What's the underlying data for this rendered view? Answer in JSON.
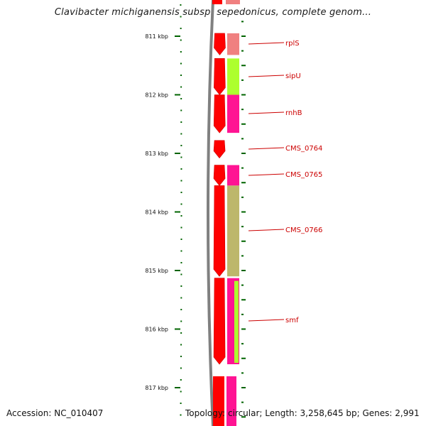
{
  "title": "Clavibacter michiganensis subsp. sepedonicus, complete genom...",
  "footer": {
    "accession": "Accession: NC_010407",
    "topology": "Topology: circular; Length: 3,258,645 bp; Genes: 2,991"
  },
  "scale": {
    "ticks": [
      "811 kbp",
      "812 kbp",
      "813 kbp",
      "814 kbp",
      "815 kbp",
      "816 kbp",
      "817 kbp"
    ]
  },
  "colors": {
    "cds_forward": "#ff0000",
    "backbone": "#808080",
    "tick": "#006400",
    "label": "#cc0000",
    "cog_pink": "#f08080",
    "cog_green": "#adff2f",
    "cog_magenta": "#ff1493",
    "cog_olive": "#bdb76b"
  },
  "genes": [
    {
      "name": "rplS",
      "start_kbp": 810.95,
      "end_kbp": 811.32,
      "cog_color": "#f08080"
    },
    {
      "name": "sipU",
      "start_kbp": 811.38,
      "end_kbp": 812.0,
      "cog_color": "#adff2f"
    },
    {
      "name": "rnhB",
      "start_kbp": 812.0,
      "end_kbp": 812.65,
      "cog_color": "#ff1493"
    },
    {
      "name": "CMS_0764",
      "start_kbp": 812.78,
      "end_kbp": 813.08,
      "cog_color": ""
    },
    {
      "name": "CMS_0765",
      "start_kbp": 813.2,
      "end_kbp": 813.55,
      "cog_color": "#ff1493"
    },
    {
      "name": "CMS_0766",
      "start_kbp": 813.55,
      "end_kbp": 815.1,
      "cog_color": "#bdb76b"
    },
    {
      "name": "smf",
      "start_kbp": 815.13,
      "end_kbp": 816.6,
      "cog_color": "#ff1493"
    }
  ]
}
